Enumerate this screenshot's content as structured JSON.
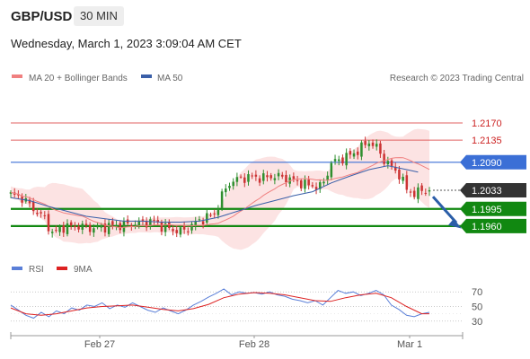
{
  "header": {
    "pair": "GBP/USD",
    "timeframe": "30 MIN"
  },
  "date_line": "Wednesday, March 1, 2023 3:09:04 AM CET",
  "legend": {
    "ma20": {
      "label": "MA 20 + Bollinger Bands",
      "color": "#f08080"
    },
    "ma50": {
      "label": "MA 50",
      "color": "#3a5fa8"
    },
    "rsi": {
      "label": "RSI",
      "color": "#5a7fd8"
    },
    "ma9": {
      "label": "9MA",
      "color": "#dd2222"
    }
  },
  "watermark": "Research © 2023 Trading Central",
  "colors": {
    "up": "#2f8f2f",
    "down": "#cc3333",
    "support": "#118811",
    "resistance": "#e06060",
    "pivot": "#3b6fd6",
    "last": "#333333",
    "band": "#fbdede",
    "arrow": "#2b5ea8"
  },
  "chart_data": [
    {
      "type": "candlestick",
      "title": "GBP/USD 30 MIN",
      "ylim": [
        1.1905,
        1.2245
      ],
      "x_ticks": [
        "Feb 27",
        "Feb 28",
        "Mar 1"
      ],
      "levels": [
        {
          "value": 1.217,
          "label": "1.2170",
          "kind": "resistance"
        },
        {
          "value": 1.2135,
          "label": "1.2135",
          "kind": "resistance"
        },
        {
          "value": 1.209,
          "label": "1.2090",
          "kind": "pivot"
        },
        {
          "value": 1.2033,
          "label": "1.2033",
          "kind": "last"
        },
        {
          "value": 1.1995,
          "label": "1.1995",
          "kind": "support"
        },
        {
          "value": 1.196,
          "label": "1.1960",
          "kind": "support"
        }
      ],
      "close_path": [
        [
          0,
          1.2024
        ],
        [
          3,
          1.2018
        ],
        [
          6,
          1.1995
        ],
        [
          9,
          1.1975
        ],
        [
          11,
          1.1945
        ],
        [
          14,
          1.1958
        ],
        [
          18,
          1.196
        ],
        [
          22,
          1.1955
        ],
        [
          26,
          1.196
        ],
        [
          30,
          1.1962
        ],
        [
          34,
          1.1966
        ],
        [
          38,
          1.197
        ],
        [
          40,
          1.196
        ],
        [
          43,
          1.1952
        ],
        [
          46,
          1.195
        ],
        [
          48,
          1.1962
        ],
        [
          51,
          1.1975
        ],
        [
          54,
          1.1985
        ],
        [
          56,
          1.2022
        ],
        [
          58,
          1.2048
        ],
        [
          61,
          1.2058
        ],
        [
          64,
          1.206
        ],
        [
          67,
          1.2058
        ],
        [
          70,
          1.2062
        ],
        [
          73,
          1.2058
        ],
        [
          76,
          1.205
        ],
        [
          79,
          1.2043
        ],
        [
          82,
          1.204
        ],
        [
          83,
          1.205
        ],
        [
          85,
          1.2088
        ],
        [
          88,
          1.2098
        ],
        [
          91,
          1.2108
        ],
        [
          93,
          1.212
        ],
        [
          95,
          1.2132
        ],
        [
          97,
          1.212
        ],
        [
          99,
          1.2095
        ],
        [
          101,
          1.208
        ],
        [
          103,
          1.2065
        ],
        [
          105,
          1.2035
        ],
        [
          107,
          1.2025
        ],
        [
          109,
          1.2033
        ],
        [
          111,
          1.2033
        ]
      ],
      "ma50_path": [
        [
          0,
          1.2018
        ],
        [
          5,
          1.2012
        ],
        [
          10,
          1.2
        ],
        [
          15,
          1.199
        ],
        [
          20,
          1.198
        ],
        [
          25,
          1.1975
        ],
        [
          30,
          1.197
        ],
        [
          35,
          1.197
        ],
        [
          40,
          1.1968
        ],
        [
          45,
          1.1968
        ],
        [
          50,
          1.197
        ],
        [
          55,
          1.1978
        ],
        [
          60,
          1.199
        ],
        [
          65,
          1.2002
        ],
        [
          70,
          1.2012
        ],
        [
          75,
          1.2022
        ],
        [
          80,
          1.203
        ],
        [
          85,
          1.2048
        ],
        [
          90,
          1.2062
        ],
        [
          95,
          1.2075
        ],
        [
          100,
          1.2083
        ],
        [
          105,
          1.2075
        ],
        [
          108,
          1.207
        ]
      ],
      "rsi_ylim": [
        15,
        85
      ],
      "rsi_ticks": [
        70,
        50,
        30
      ],
      "rsi_path": [
        [
          0,
          52
        ],
        [
          2,
          45
        ],
        [
          4,
          38
        ],
        [
          6,
          34
        ],
        [
          8,
          42
        ],
        [
          10,
          36
        ],
        [
          12,
          44
        ],
        [
          14,
          40
        ],
        [
          16,
          48
        ],
        [
          18,
          45
        ],
        [
          20,
          52
        ],
        [
          22,
          50
        ],
        [
          24,
          55
        ],
        [
          26,
          47
        ],
        [
          28,
          52
        ],
        [
          30,
          49
        ],
        [
          32,
          55
        ],
        [
          34,
          50
        ],
        [
          36,
          45
        ],
        [
          38,
          42
        ],
        [
          40,
          48
        ],
        [
          42,
          44
        ],
        [
          44,
          40
        ],
        [
          46,
          45
        ],
        [
          48,
          52
        ],
        [
          50,
          57
        ],
        [
          52,
          63
        ],
        [
          54,
          68
        ],
        [
          56,
          74
        ],
        [
          58,
          66
        ],
        [
          60,
          70
        ],
        [
          62,
          68
        ],
        [
          64,
          69
        ],
        [
          66,
          67
        ],
        [
          68,
          70
        ],
        [
          70,
          66
        ],
        [
          72,
          64
        ],
        [
          74,
          60
        ],
        [
          76,
          58
        ],
        [
          78,
          55
        ],
        [
          80,
          58
        ],
        [
          82,
          52
        ],
        [
          84,
          62
        ],
        [
          86,
          72
        ],
        [
          88,
          68
        ],
        [
          90,
          70
        ],
        [
          92,
          65
        ],
        [
          94,
          68
        ],
        [
          96,
          72
        ],
        [
          98,
          66
        ],
        [
          100,
          52
        ],
        [
          102,
          46
        ],
        [
          104,
          38
        ],
        [
          106,
          36
        ],
        [
          108,
          40
        ],
        [
          110,
          42
        ]
      ],
      "rsi_ma_path": [
        [
          0,
          48
        ],
        [
          4,
          40
        ],
        [
          8,
          38
        ],
        [
          12,
          40
        ],
        [
          16,
          44
        ],
        [
          20,
          48
        ],
        [
          24,
          50
        ],
        [
          28,
          51
        ],
        [
          32,
          52
        ],
        [
          36,
          49
        ],
        [
          40,
          46
        ],
        [
          44,
          44
        ],
        [
          48,
          47
        ],
        [
          52,
          53
        ],
        [
          56,
          62
        ],
        [
          60,
          67
        ],
        [
          64,
          69
        ],
        [
          68,
          68
        ],
        [
          72,
          66
        ],
        [
          76,
          62
        ],
        [
          80,
          58
        ],
        [
          84,
          57
        ],
        [
          88,
          62
        ],
        [
          92,
          66
        ],
        [
          96,
          68
        ],
        [
          100,
          62
        ],
        [
          104,
          50
        ],
        [
          108,
          40
        ],
        [
          110,
          40
        ]
      ]
    }
  ]
}
